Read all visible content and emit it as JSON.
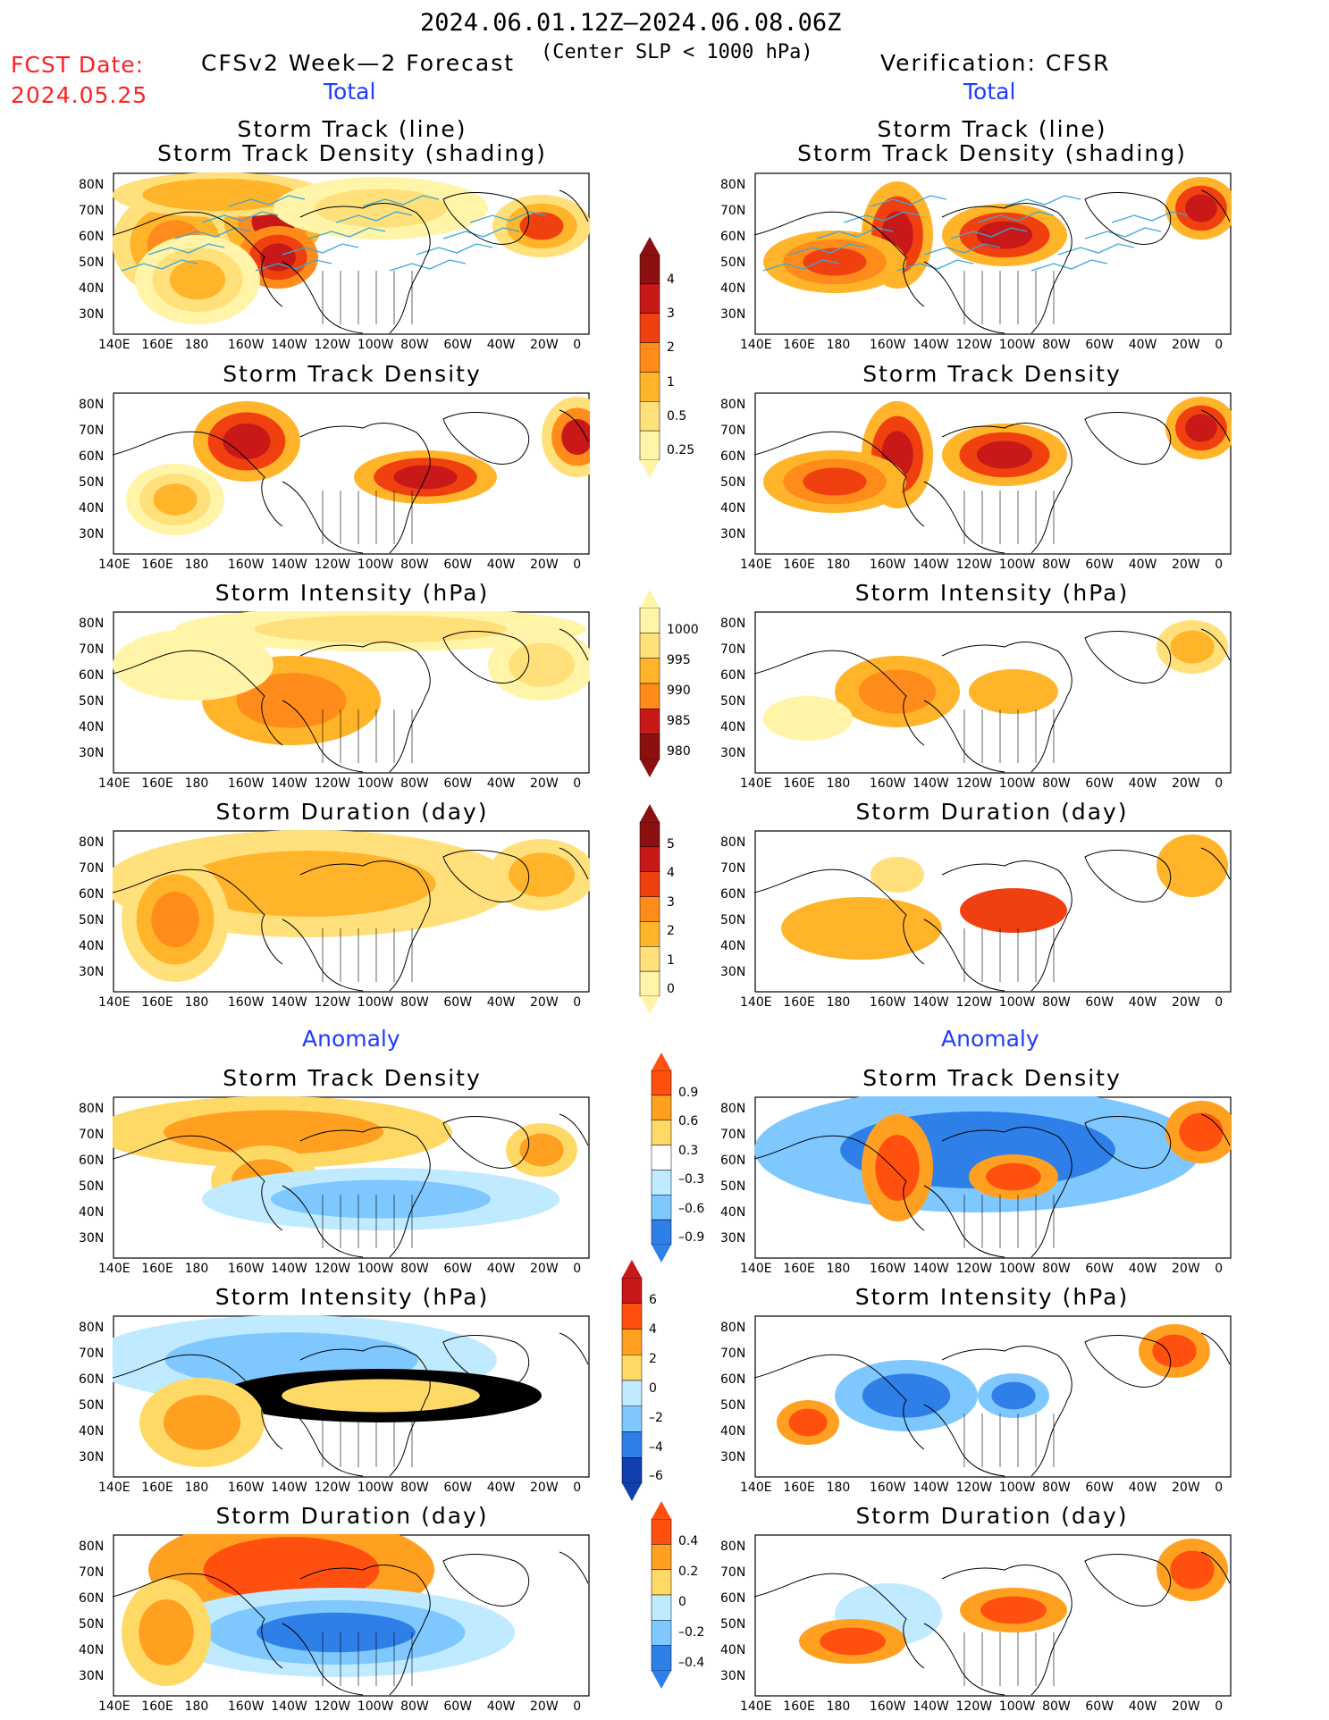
{
  "header": {
    "period": "2024.06.01.12Z—2024.06.08.06Z",
    "criterion": "(Center SLP < 1000 hPa)",
    "fcst_label": "FCST Date:",
    "fcst_date": "2024.05.25",
    "left_model": "CFSv2 Week—2 Forecast",
    "right_model": "Verification: CFSR",
    "total_label": "Total",
    "anomaly_label": "Anomaly"
  },
  "titles": {
    "track_line": "Storm Track (line)",
    "track_shading": "Storm Track Density (shading)",
    "density": "Storm Track Density",
    "intensity": "Storm Intensity (hPa)",
    "duration": "Storm Duration (day)"
  },
  "lat_ticks": [
    "80N",
    "70N",
    "60N",
    "50N",
    "40N",
    "30N"
  ],
  "lon_ticks": [
    "140E",
    "160E",
    "180",
    "160W",
    "140W",
    "120W",
    "100W",
    "80W",
    "60W",
    "40W",
    "20W",
    "0"
  ],
  "colorbars": {
    "density_total": [
      "4",
      "3",
      "2",
      "1",
      "0.5",
      "0.25"
    ],
    "intensity_total": [
      "1000",
      "995",
      "990",
      "985",
      "980"
    ],
    "duration_total": [
      "5",
      "4",
      "3",
      "2",
      "1",
      "0"
    ],
    "density_anom": [
      "0.9",
      "0.6",
      "0.3",
      "–0.3",
      "–0.6",
      "–0.9"
    ],
    "intensity_anom": [
      "6",
      "4",
      "2",
      "0",
      "–2",
      "–4",
      "–6"
    ],
    "duration_anom": [
      "0.4",
      "0.2",
      "0",
      "–0.2",
      "–0.4"
    ]
  },
  "colors": {
    "total_scale": [
      "#fff4a8",
      "#ffe07a",
      "#ffb429",
      "#ff8c1a",
      "#f04010",
      "#c81818",
      "#8c1010"
    ],
    "anom_warm": [
      "#ffd966",
      "#ffa020",
      "#ff5010",
      "#c81818"
    ],
    "anom_cool": [
      "#bfeaff",
      "#7ec8ff",
      "#2f7fe8",
      "#1040b0"
    ],
    "track_line": "#3aa8d8"
  }
}
